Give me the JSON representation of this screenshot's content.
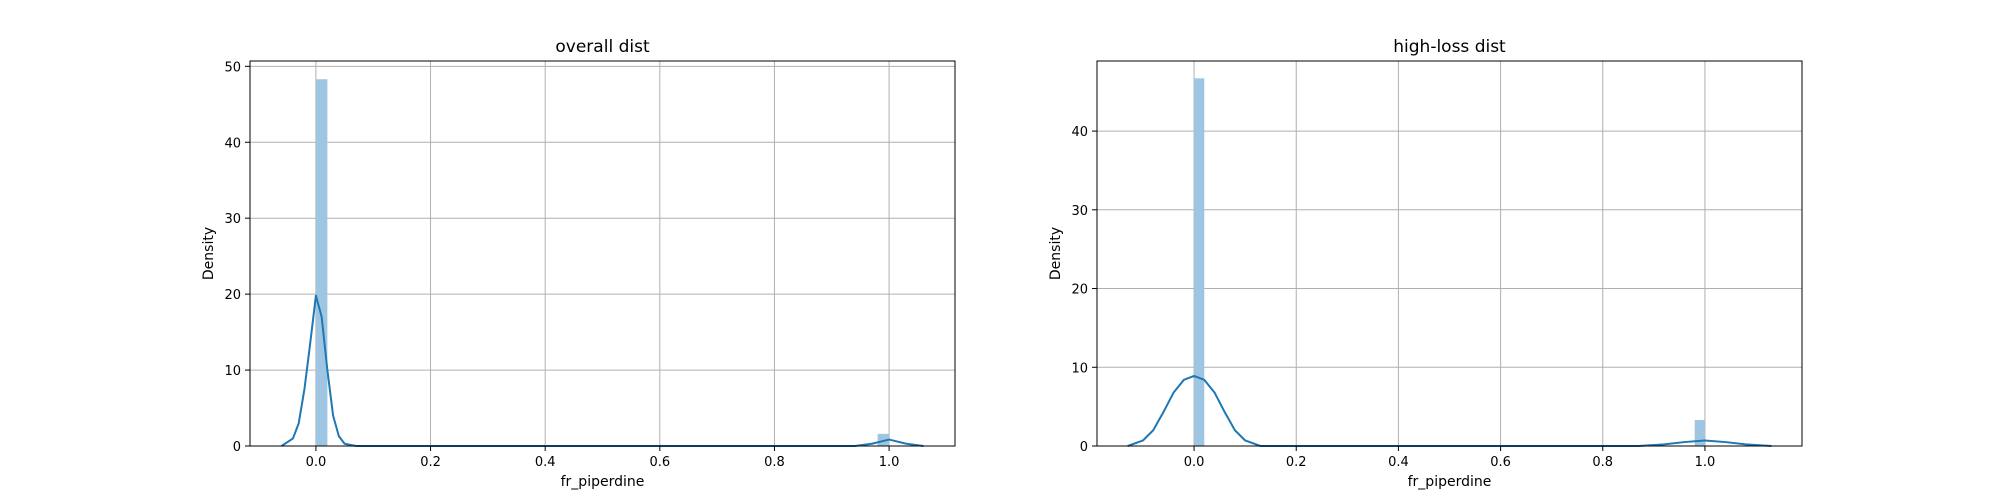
{
  "chart_data": [
    {
      "type": "histogram+kde",
      "title": "overall dist",
      "xlabel": "fr_piperdine",
      "ylabel": "Density",
      "xlim": [
        -0.115,
        1.115
      ],
      "ylim": [
        0,
        50.7
      ],
      "xticks": [
        0.0,
        0.2,
        0.4,
        0.6,
        0.8,
        1.0
      ],
      "xtick_labels": [
        "0.0",
        "0.2",
        "0.4",
        "0.6",
        "0.8",
        "1.0"
      ],
      "yticks": [
        0,
        10,
        20,
        30,
        40,
        50
      ],
      "ytick_labels": [
        "0",
        "10",
        "20",
        "30",
        "40",
        "50"
      ],
      "grid": true,
      "bar_color": "#9ec5e2",
      "line_color": "#1f77b4",
      "bins": [
        {
          "x0": 0.0,
          "x1": 0.02,
          "density": 48.3
        },
        {
          "x0": 0.98,
          "x1": 1.0,
          "density": 1.6
        }
      ],
      "kde": [
        [
          -0.06,
          0.0
        ],
        [
          -0.04,
          1.0
        ],
        [
          -0.03,
          3.0
        ],
        [
          -0.02,
          7.5
        ],
        [
          -0.01,
          13.5
        ],
        [
          0.0,
          19.8
        ],
        [
          0.01,
          17.0
        ],
        [
          0.02,
          10.0
        ],
        [
          0.03,
          4.0
        ],
        [
          0.04,
          1.3
        ],
        [
          0.05,
          0.3
        ],
        [
          0.07,
          0.0
        ],
        [
          0.94,
          0.0
        ],
        [
          0.97,
          0.3
        ],
        [
          1.0,
          0.85
        ],
        [
          1.03,
          0.3
        ],
        [
          1.06,
          0.0
        ]
      ]
    },
    {
      "type": "histogram+kde",
      "title": "high-loss dist",
      "xlabel": "fr_piperdine",
      "ylabel": "Density",
      "xlim": [
        -0.19,
        1.19
      ],
      "ylim": [
        0,
        48.9
      ],
      "xticks": [
        0.0,
        0.2,
        0.4,
        0.6,
        0.8,
        1.0
      ],
      "xtick_labels": [
        "0.0",
        "0.2",
        "0.4",
        "0.6",
        "0.8",
        "1.0"
      ],
      "yticks": [
        0,
        10,
        20,
        30,
        40
      ],
      "ytick_labels": [
        "0",
        "10",
        "20",
        "30",
        "40"
      ],
      "grid": true,
      "bar_color": "#9ec5e2",
      "line_color": "#1f77b4",
      "bins": [
        {
          "x0": 0.0,
          "x1": 0.02,
          "density": 46.7
        },
        {
          "x0": 0.98,
          "x1": 1.0,
          "density": 3.3
        }
      ],
      "kde": [
        [
          -0.13,
          0.0
        ],
        [
          -0.1,
          0.7
        ],
        [
          -0.08,
          2.0
        ],
        [
          -0.06,
          4.3
        ],
        [
          -0.04,
          6.8
        ],
        [
          -0.02,
          8.4
        ],
        [
          0.0,
          8.9
        ],
        [
          0.02,
          8.4
        ],
        [
          0.04,
          6.8
        ],
        [
          0.06,
          4.3
        ],
        [
          0.08,
          2.0
        ],
        [
          0.1,
          0.7
        ],
        [
          0.13,
          0.0
        ],
        [
          0.87,
          0.0
        ],
        [
          0.92,
          0.2
        ],
        [
          0.96,
          0.5
        ],
        [
          1.0,
          0.7
        ],
        [
          1.04,
          0.5
        ],
        [
          1.08,
          0.2
        ],
        [
          1.13,
          0.0
        ]
      ]
    }
  ]
}
